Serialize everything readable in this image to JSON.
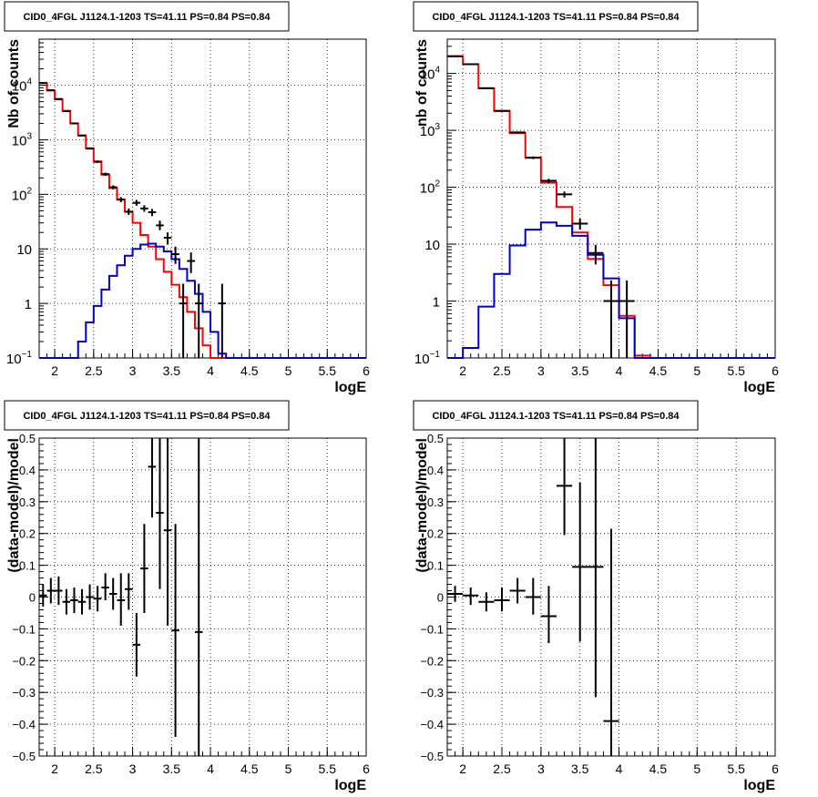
{
  "chart_data": [
    {
      "type": "step",
      "title": "CID0_4FGL J1124.1-1203 TS=41.11 PS=0.84 PS=0.84",
      "xlabel": "logE",
      "ylabel": "Nb of counts",
      "xlim": [
        1.8,
        6.0
      ],
      "ylim": [
        0.1,
        70000
      ],
      "yscale": "log",
      "grid": true,
      "x_ticks": [
        2,
        2.5,
        3,
        3.5,
        4,
        4.5,
        5,
        5.5,
        6
      ],
      "x_tick_labels": [
        "2",
        "2.5",
        "3",
        "3.5",
        "4",
        "4.5",
        "5",
        "5.5",
        "6"
      ],
      "y_ticks": [
        0.1,
        1,
        10,
        100,
        1000,
        10000
      ],
      "y_tick_labels": [
        {
          "base": "10",
          "exp": "−1"
        },
        {
          "base": "1",
          "exp": ""
        },
        {
          "base": "10",
          "exp": ""
        },
        {
          "base": "10",
          "exp": "2"
        },
        {
          "base": "10",
          "exp": "3"
        },
        {
          "base": "10",
          "exp": "4"
        }
      ],
      "bin_edges": [
        1.8,
        1.9,
        2.0,
        2.1,
        2.2,
        2.3,
        2.4,
        2.5,
        2.6,
        2.7,
        2.8,
        2.9,
        3.0,
        3.1,
        3.2,
        3.3,
        3.4,
        3.5,
        3.6,
        3.7,
        3.8,
        3.9,
        4.0,
        4.1,
        4.2,
        4.3,
        4.4,
        4.5,
        4.6,
        4.7,
        4.8,
        4.9,
        5.0,
        5.1,
        5.2,
        5.3,
        5.4,
        5.5,
        5.6,
        5.7,
        5.8,
        5.9,
        6.0
      ],
      "series": [
        {
          "color": "#ff0000",
          "values": [
            11000,
            8000,
            5500,
            3400,
            2000,
            1200,
            700,
            400,
            230,
            130,
            80,
            48,
            30,
            18,
            11,
            6.5,
            3.8,
            2.2,
            1.3,
            0.7,
            0.35,
            0.17,
            0.1,
            0.1,
            0.1,
            0.1,
            0.1,
            0.1,
            0.1,
            0.1,
            0.1,
            0.1,
            0.1,
            0.1,
            0.1,
            0.1,
            0.1,
            0.1,
            0.1,
            0.1,
            0.1,
            0.1
          ]
        },
        {
          "color": "#0000cc",
          "values": [
            0.1,
            0.1,
            0.1,
            0.1,
            0.1,
            0.2,
            0.45,
            0.9,
            1.8,
            3.2,
            5,
            7.5,
            10,
            12,
            12.5,
            11,
            9,
            6.5,
            4.3,
            2.6,
            1.5,
            0.7,
            0.3,
            0.12,
            0.1,
            0.1,
            0.1,
            0.1,
            0.1,
            0.1,
            0.1,
            0.1,
            0.1,
            0.1,
            0.1,
            0.1,
            0.1,
            0.1,
            0.1,
            0.1,
            0.1,
            0.1
          ]
        }
      ],
      "data_points": [
        {
          "x": 1.85,
          "y": 11000,
          "xerr": 0.05,
          "ylo": 10900,
          "yhi": 11100
        },
        {
          "x": 1.95,
          "y": 8100,
          "xerr": 0.05,
          "ylo": 8000,
          "yhi": 8200
        },
        {
          "x": 2.05,
          "y": 5600,
          "xerr": 0.05,
          "ylo": 5500,
          "yhi": 5700
        },
        {
          "x": 2.15,
          "y": 3350,
          "xerr": 0.05,
          "ylo": 3290,
          "yhi": 3410
        },
        {
          "x": 2.25,
          "y": 2000,
          "xerr": 0.05,
          "ylo": 1960,
          "yhi": 2040
        },
        {
          "x": 2.35,
          "y": 1200,
          "xerr": 0.05,
          "ylo": 1170,
          "yhi": 1230
        },
        {
          "x": 2.45,
          "y": 690,
          "xerr": 0.05,
          "ylo": 665,
          "yhi": 715
        },
        {
          "x": 2.55,
          "y": 395,
          "xerr": 0.05,
          "ylo": 375,
          "yhi": 415
        },
        {
          "x": 2.65,
          "y": 235,
          "xerr": 0.05,
          "ylo": 220,
          "yhi": 250
        },
        {
          "x": 2.75,
          "y": 135,
          "xerr": 0.05,
          "ylo": 124,
          "yhi": 146
        },
        {
          "x": 2.85,
          "y": 80,
          "xerr": 0.05,
          "ylo": 72,
          "yhi": 89
        },
        {
          "x": 2.95,
          "y": 48,
          "xerr": 0.05,
          "ylo": 42,
          "yhi": 55
        },
        {
          "x": 3.05,
          "y": 70,
          "xerr": 0.05,
          "ylo": 62,
          "yhi": 79
        },
        {
          "x": 3.15,
          "y": 55,
          "xerr": 0.05,
          "ylo": 48,
          "yhi": 63
        },
        {
          "x": 3.25,
          "y": 47,
          "xerr": 0.05,
          "ylo": 40,
          "yhi": 54
        },
        {
          "x": 3.35,
          "y": 27,
          "xerr": 0.05,
          "ylo": 22,
          "yhi": 33
        },
        {
          "x": 3.45,
          "y": 16,
          "xerr": 0.05,
          "ylo": 12,
          "yhi": 20
        },
        {
          "x": 3.55,
          "y": 8,
          "xerr": 0.05,
          "ylo": 5.3,
          "yhi": 11
        },
        {
          "x": 3.65,
          "y": 1,
          "xerr": 0.05,
          "ylo": 0.1,
          "yhi": 2.3
        },
        {
          "x": 3.75,
          "y": 6,
          "xerr": 0.05,
          "ylo": 3.6,
          "yhi": 8.6
        },
        {
          "x": 3.85,
          "y": 1,
          "xerr": 0.05,
          "ylo": 0.1,
          "yhi": 2.3
        },
        {
          "x": 4.15,
          "y": 1,
          "xerr": 0.05,
          "ylo": 0.1,
          "yhi": 2.3
        }
      ]
    },
    {
      "type": "step",
      "title": "CID0_4FGL J1124.1-1203 TS=41.11 PS=0.84 PS=0.84",
      "xlabel": "logE",
      "ylabel": "nb of counts",
      "xlim": [
        1.8,
        6.0
      ],
      "ylim": [
        0.1,
        40000
      ],
      "yscale": "log",
      "grid": true,
      "x_ticks": [
        2,
        2.5,
        3,
        3.5,
        4,
        4.5,
        5,
        5.5,
        6
      ],
      "x_tick_labels": [
        "2",
        "2.5",
        "3",
        "3.5",
        "4",
        "4.5",
        "5",
        "5.5",
        "6"
      ],
      "y_ticks": [
        0.1,
        1,
        10,
        100,
        1000,
        10000
      ],
      "y_tick_labels": [
        {
          "base": "10",
          "exp": "−1"
        },
        {
          "base": "1",
          "exp": ""
        },
        {
          "base": "10",
          "exp": ""
        },
        {
          "base": "10",
          "exp": "2"
        },
        {
          "base": "10",
          "exp": "3"
        },
        {
          "base": "10",
          "exp": "4"
        }
      ],
      "bin_edges": [
        1.8,
        2.0,
        2.2,
        2.4,
        2.6,
        2.8,
        3.0,
        3.2,
        3.4,
        3.6,
        3.8,
        4.0,
        4.2,
        4.4,
        4.6,
        4.8,
        5.0,
        5.2,
        5.4,
        5.6,
        5.8,
        6.0
      ],
      "series": [
        {
          "color": "#ff0000",
          "values": [
            20000,
            14500,
            5500,
            2200,
            900,
            330,
            120,
            45,
            16,
            5.5,
            1.9,
            0.55,
            0.11,
            0.1,
            0.1,
            0.1,
            0.1,
            0.1,
            0.1,
            0.1,
            0.1
          ]
        },
        {
          "color": "#0000cc",
          "values": [
            0.1,
            0.15,
            0.8,
            3,
            9.5,
            18,
            24,
            21,
            14,
            6.5,
            2.5,
            0.5,
            0.1,
            0.1,
            0.1,
            0.1,
            0.1,
            0.1,
            0.1,
            0.1,
            0.1
          ]
        }
      ],
      "data_points": [
        {
          "x": 1.9,
          "y": 20000,
          "xerr": 0.1,
          "ylo": 19800,
          "yhi": 20200
        },
        {
          "x": 2.1,
          "y": 14500,
          "xerr": 0.1,
          "ylo": 14350,
          "yhi": 14650
        },
        {
          "x": 2.3,
          "y": 5500,
          "xerr": 0.1,
          "ylo": 5420,
          "yhi": 5580
        },
        {
          "x": 2.5,
          "y": 2200,
          "xerr": 0.1,
          "ylo": 2150,
          "yhi": 2250
        },
        {
          "x": 2.7,
          "y": 920,
          "xerr": 0.1,
          "ylo": 890,
          "yhi": 950
        },
        {
          "x": 2.9,
          "y": 330,
          "xerr": 0.1,
          "ylo": 312,
          "yhi": 348
        },
        {
          "x": 3.1,
          "y": 130,
          "xerr": 0.1,
          "ylo": 119,
          "yhi": 141
        },
        {
          "x": 3.3,
          "y": 75,
          "xerr": 0.1,
          "ylo": 66,
          "yhi": 84
        },
        {
          "x": 3.5,
          "y": 23,
          "xerr": 0.1,
          "ylo": 18,
          "yhi": 28
        },
        {
          "x": 3.7,
          "y": 7,
          "xerr": 0.1,
          "ylo": 4.4,
          "yhi": 9.7
        },
        {
          "x": 3.9,
          "y": 1,
          "xerr": 0.1,
          "ylo": 0.1,
          "yhi": 2.3
        },
        {
          "x": 4.1,
          "y": 1,
          "xerr": 0.1,
          "ylo": 0.1,
          "yhi": 2.3
        }
      ]
    },
    {
      "type": "scatter",
      "title": "CID0_4FGL J1124.1-1203 TS=41.11 PS=0.84 PS=0.84",
      "xlabel": "logE",
      "ylabel": "(data-model)/model",
      "xlim": [
        1.8,
        6.0
      ],
      "ylim": [
        -0.5,
        0.5
      ],
      "grid": true,
      "x_ticks": [
        2,
        2.5,
        3,
        3.5,
        4,
        4.5,
        5,
        5.5,
        6
      ],
      "x_tick_labels": [
        "2",
        "2.5",
        "3",
        "3.5",
        "4",
        "4.5",
        "5",
        "5.5",
        "6"
      ],
      "y_ticks": [
        -0.5,
        -0.4,
        -0.3,
        -0.2,
        -0.1,
        0,
        0.1,
        0.2,
        0.3,
        0.4,
        0.5
      ],
      "y_tick_labels": [
        "−0.5",
        "−0.4",
        "−0.3",
        "−0.2",
        "−0.1",
        "0",
        "0.1",
        "0.2",
        "0.3",
        "0.4",
        "0.5"
      ],
      "data_points": [
        {
          "x": 1.85,
          "y": 0.005,
          "xerr": 0.05,
          "ylo": -0.03,
          "yhi": 0.04
        },
        {
          "x": 1.95,
          "y": 0.02,
          "xerr": 0.05,
          "ylo": -0.02,
          "yhi": 0.06
        },
        {
          "x": 2.05,
          "y": 0.02,
          "xerr": 0.05,
          "ylo": -0.025,
          "yhi": 0.065
        },
        {
          "x": 2.15,
          "y": -0.015,
          "xerr": 0.05,
          "ylo": -0.055,
          "yhi": 0.025
        },
        {
          "x": 2.25,
          "y": -0.01,
          "xerr": 0.05,
          "ylo": -0.05,
          "yhi": 0.03
        },
        {
          "x": 2.35,
          "y": -0.015,
          "xerr": 0.05,
          "ylo": -0.055,
          "yhi": 0.025
        },
        {
          "x": 2.45,
          "y": 0.0,
          "xerr": 0.05,
          "ylo": -0.04,
          "yhi": 0.04
        },
        {
          "x": 2.55,
          "y": -0.005,
          "xerr": 0.05,
          "ylo": -0.045,
          "yhi": 0.035
        },
        {
          "x": 2.65,
          "y": 0.03,
          "xerr": 0.05,
          "ylo": -0.01,
          "yhi": 0.075
        },
        {
          "x": 2.75,
          "y": 0.01,
          "xerr": 0.05,
          "ylo": -0.04,
          "yhi": 0.06
        },
        {
          "x": 2.85,
          "y": -0.01,
          "xerr": 0.05,
          "ylo": -0.09,
          "yhi": 0.075
        },
        {
          "x": 2.95,
          "y": 0.025,
          "xerr": 0.05,
          "ylo": -0.04,
          "yhi": 0.075
        },
        {
          "x": 3.05,
          "y": -0.15,
          "xerr": 0.05,
          "ylo": -0.25,
          "yhi": -0.05
        },
        {
          "x": 3.15,
          "y": 0.09,
          "xerr": 0.05,
          "ylo": -0.05,
          "yhi": 0.23
        },
        {
          "x": 3.25,
          "y": 0.41,
          "xerr": 0.05,
          "ylo": 0.25,
          "yhi": 0.5
        },
        {
          "x": 3.35,
          "y": 0.265,
          "xerr": 0.05,
          "ylo": 0.025,
          "yhi": 0.5
        },
        {
          "x": 3.45,
          "y": 0.21,
          "xerr": 0.05,
          "ylo": -0.09,
          "yhi": 0.5
        },
        {
          "x": 3.55,
          "y": -0.105,
          "xerr": 0.05,
          "ylo": -0.44,
          "yhi": 0.23
        },
        {
          "x": 3.85,
          "y": -0.11,
          "xerr": 0.05,
          "ylo": -0.5,
          "yhi": 0.5
        }
      ]
    },
    {
      "type": "scatter",
      "title": "CID0_4FGL J1124.1-1203 TS=41.11 PS=0.84 PS=0.84",
      "xlabel": "logE",
      "ylabel": "(data-model)/model",
      "xlim": [
        1.8,
        6.0
      ],
      "ylim": [
        -0.5,
        0.5
      ],
      "grid": true,
      "x_ticks": [
        2,
        2.5,
        3,
        3.5,
        4,
        4.5,
        5,
        5.5,
        6
      ],
      "x_tick_labels": [
        "2",
        "2.5",
        "3",
        "3.5",
        "4",
        "4.5",
        "5",
        "5.5",
        "6"
      ],
      "y_ticks": [
        -0.5,
        -0.4,
        -0.3,
        -0.2,
        -0.1,
        0,
        0.1,
        0.2,
        0.3,
        0.4,
        0.5
      ],
      "y_tick_labels": [
        "−0.5",
        "−0.4",
        "−0.3",
        "−0.2",
        "−0.1",
        "0",
        "0.1",
        "0.2",
        "0.3",
        "0.4",
        "0.5"
      ],
      "data_points": [
        {
          "x": 1.9,
          "y": 0.01,
          "xerr": 0.1,
          "ylo": -0.015,
          "yhi": 0.035
        },
        {
          "x": 2.1,
          "y": 0.005,
          "xerr": 0.1,
          "ylo": -0.025,
          "yhi": 0.03
        },
        {
          "x": 2.3,
          "y": -0.015,
          "xerr": 0.1,
          "ylo": -0.045,
          "yhi": 0.015
        },
        {
          "x": 2.5,
          "y": -0.01,
          "xerr": 0.1,
          "ylo": -0.045,
          "yhi": 0.03
        },
        {
          "x": 2.7,
          "y": 0.02,
          "xerr": 0.1,
          "ylo": -0.02,
          "yhi": 0.06
        },
        {
          "x": 2.9,
          "y": 0.0,
          "xerr": 0.1,
          "ylo": -0.055,
          "yhi": 0.06
        },
        {
          "x": 3.1,
          "y": -0.06,
          "xerr": 0.1,
          "ylo": -0.145,
          "yhi": 0.035
        },
        {
          "x": 3.3,
          "y": 0.35,
          "xerr": 0.1,
          "ylo": 0.195,
          "yhi": 0.5
        },
        {
          "x": 3.5,
          "y": 0.095,
          "xerr": 0.1,
          "ylo": -0.14,
          "yhi": 0.36
        },
        {
          "x": 3.7,
          "y": 0.095,
          "xerr": 0.1,
          "ylo": -0.315,
          "yhi": 0.5
        },
        {
          "x": 3.9,
          "y": -0.39,
          "xerr": 0.1,
          "ylo": -0.5,
          "yhi": 0.215
        }
      ]
    }
  ]
}
